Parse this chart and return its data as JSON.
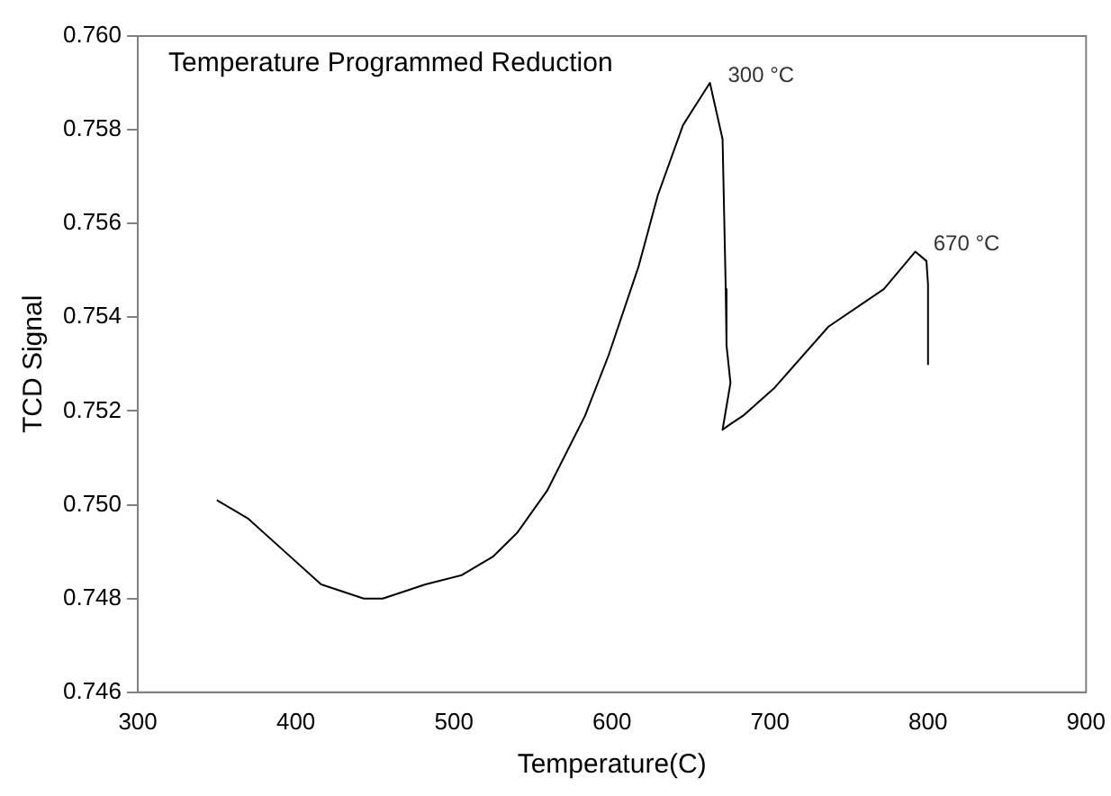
{
  "chart_data": {
    "type": "line",
    "title": "Temperature Programmed Reduction",
    "xlabel": "Temperature(C)",
    "ylabel": "TCD Signal",
    "x": [
      350,
      370,
      393,
      416,
      443,
      455,
      482,
      505,
      525,
      540,
      559,
      583,
      598,
      617,
      629,
      645,
      662,
      664,
      670,
      672,
      672.5,
      675,
      670,
      674,
      683,
      703,
      737,
      772,
      792,
      799,
      800,
      800
    ],
    "series": [
      {
        "color": "#000000",
        "values": [
          0.7501,
          0.7497,
          0.749,
          0.7483,
          0.748,
          0.748,
          0.7483,
          0.7485,
          0.7489,
          0.7494,
          0.7503,
          0.7519,
          0.7532,
          0.7551,
          0.7566,
          0.7581,
          0.759,
          0.7587,
          0.7578,
          0.7546,
          0.7534,
          0.7526,
          0.7516,
          0.7517,
          0.7519,
          0.7525,
          0.7538,
          0.7546,
          0.7554,
          0.7552,
          0.7547,
          0.753
        ]
      }
    ],
    "xlim": [
      300,
      900
    ],
    "xticks": [
      300,
      400,
      500,
      600,
      700,
      800,
      900
    ],
    "ylim": [
      0.746,
      0.76
    ],
    "yticks": [
      {
        "value": 0.746,
        "label": "0.746"
      },
      {
        "value": 0.748,
        "label": "0.748"
      },
      {
        "value": 0.75,
        "label": "0.750"
      },
      {
        "value": 0.752,
        "label": "0.752"
      },
      {
        "value": 0.754,
        "label": "0.754"
      },
      {
        "value": 0.756,
        "label": "0.756"
      },
      {
        "value": 0.758,
        "label": "0.758"
      },
      {
        "value": 0.76,
        "label": "0.760"
      }
    ],
    "annotations": [
      {
        "text": "300 °C",
        "x": 662,
        "y": 0.759
      },
      {
        "text": "670 °C",
        "x": 792,
        "y": 0.7554
      }
    ],
    "grid": false,
    "legend": false,
    "marker": "none",
    "line_style": "solid"
  }
}
